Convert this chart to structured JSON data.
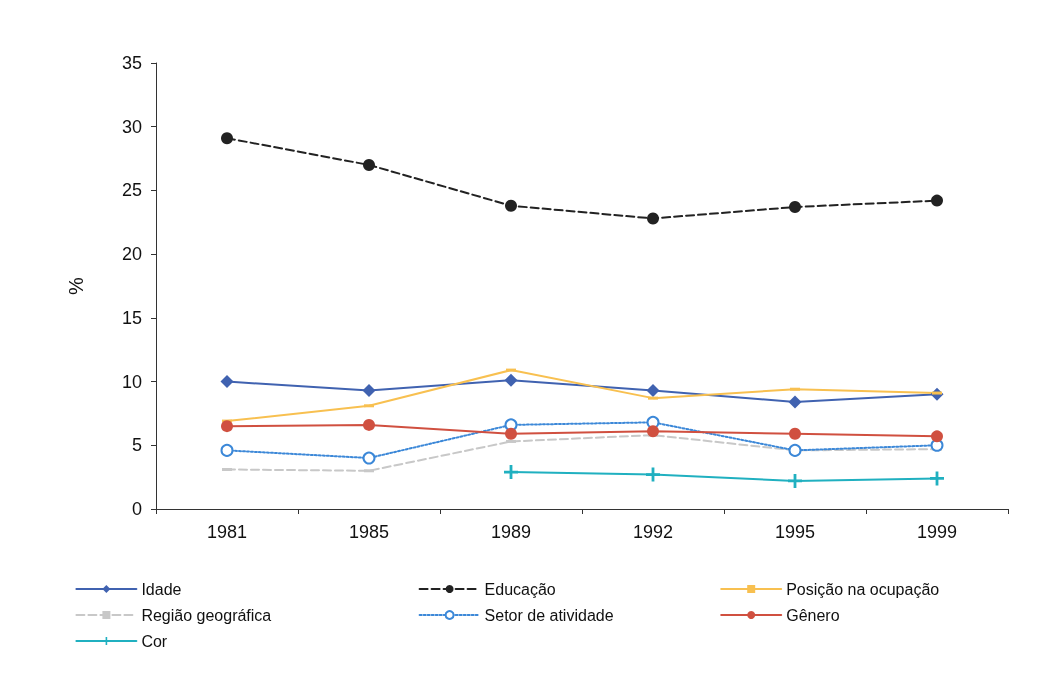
{
  "chart_data": {
    "type": "line",
    "ylabel": "%",
    "categories": [
      "1981",
      "1985",
      "1989",
      "1992",
      "1995",
      "1999"
    ],
    "ylim": [
      0,
      35
    ],
    "yticks": [
      0,
      5,
      10,
      15,
      20,
      25,
      30,
      35
    ],
    "grid": false,
    "legend": "bottom",
    "series": [
      {
        "name": "Idade",
        "color": "#4062b0",
        "marker": "diamond",
        "line_style": "solid",
        "values": [
          10.0,
          9.3,
          10.1,
          9.3,
          8.4,
          9.0
        ]
      },
      {
        "name": "Educação",
        "color": "#222222",
        "marker": "circle",
        "line_style": "dashed",
        "values": [
          29.1,
          27.0,
          23.8,
          22.8,
          23.7,
          24.2
        ]
      },
      {
        "name": "Posição na ocupação",
        "color": "#f8c050",
        "marker": "square",
        "line_style": "solid",
        "values": [
          6.9,
          8.1,
          10.9,
          8.7,
          9.4,
          9.1
        ]
      },
      {
        "name": "Região geográfica",
        "color": "#c8c8c8",
        "marker": "square",
        "line_style": "dashed",
        "values": [
          3.1,
          3.0,
          5.3,
          5.8,
          4.6,
          4.7
        ]
      },
      {
        "name": "Setor de atividade",
        "color": "#3c88d8",
        "marker": "open_circle",
        "line_style": "dotted",
        "values": [
          4.6,
          4.0,
          6.6,
          6.8,
          4.6,
          5.0
        ]
      },
      {
        "name": "Gênero",
        "color": "#d05040",
        "marker": "circle",
        "line_style": "solid",
        "values": [
          6.5,
          6.6,
          5.9,
          6.1,
          5.9,
          5.7
        ]
      },
      {
        "name": "Cor",
        "color": "#20b0c0",
        "marker": "cross",
        "line_style": "solid",
        "values": [
          null,
          null,
          2.9,
          2.7,
          2.2,
          2.4
        ]
      }
    ]
  }
}
